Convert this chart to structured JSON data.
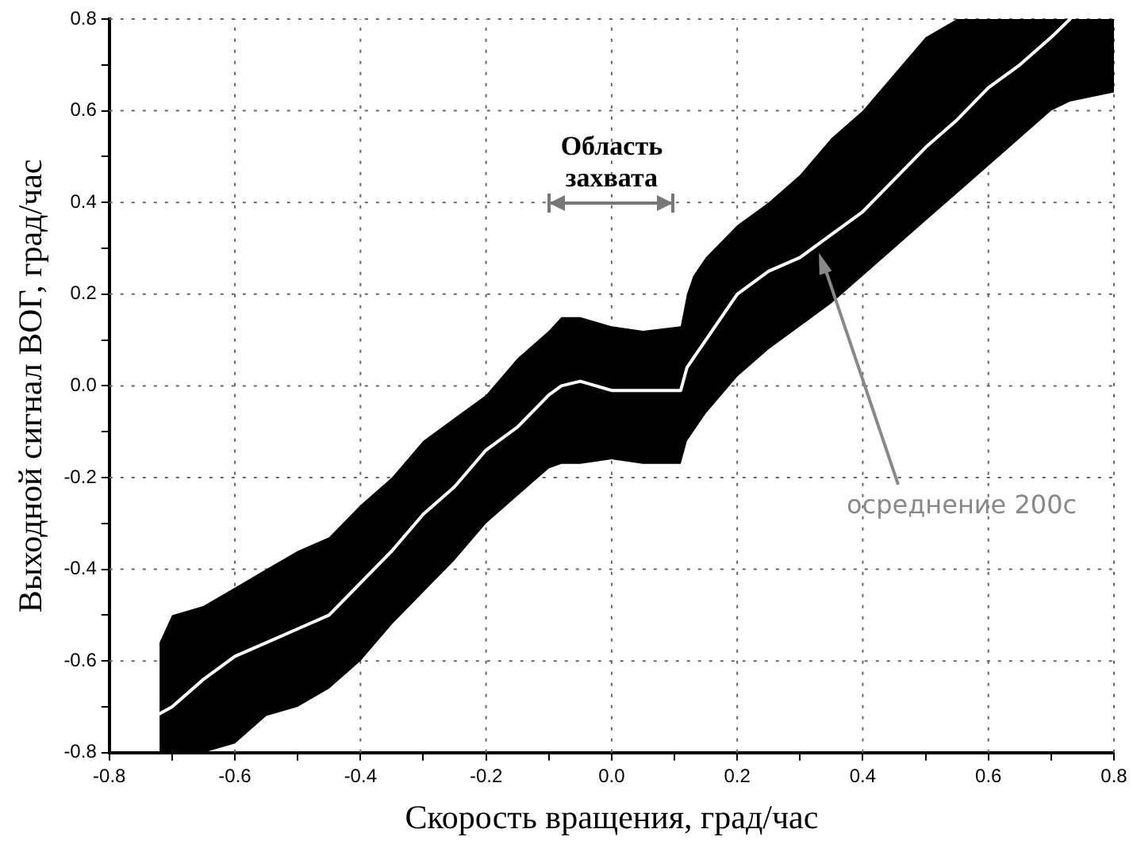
{
  "chart_data": {
    "type": "line",
    "xlabel": "Скорость вращения, град/час",
    "ylabel": "Выходной сигнал ВОГ, град/час",
    "xlim": [
      -0.8,
      0.8
    ],
    "ylim": [
      -0.8,
      0.8
    ],
    "xticks": [
      -0.8,
      {
        "value": -0.7,
        "label": null
      },
      -0.6,
      {
        "value": -0.5,
        "label": null
      },
      -0.4,
      {
        "value": -0.3,
        "label": null
      },
      -0.2,
      {
        "value": -0.1,
        "label": null
      },
      {
        "value": 0,
        "label": "0.0"
      },
      {
        "value": 0.1,
        "label": null
      },
      0.2,
      {
        "value": 0.3,
        "label": null
      },
      0.4,
      {
        "value": 0.5,
        "label": null
      },
      0.6,
      {
        "value": 0.7,
        "label": null
      },
      0.8
    ],
    "yticks": [
      -0.8,
      {
        "value": -0.7,
        "label": null
      },
      -0.6,
      {
        "value": -0.5,
        "label": null
      },
      -0.4,
      {
        "value": -0.3,
        "label": null
      },
      -0.2,
      {
        "value": -0.1,
        "label": null
      },
      {
        "value": 0,
        "label": "0.0"
      },
      {
        "value": 0.1,
        "label": null
      },
      0.2,
      {
        "value": 0.3,
        "label": null
      },
      0.4,
      {
        "value": 0.5,
        "label": null
      },
      0.6,
      {
        "value": 0.7,
        "label": null
      },
      0.8
    ],
    "grid": true,
    "legend": false,
    "marker": "none",
    "line_style": "solid",
    "series": [
      {
        "color": "#ffffff",
        "x": [
          -0.72,
          -0.7,
          -0.65,
          -0.6,
          -0.55,
          -0.5,
          -0.45,
          -0.4,
          -0.35,
          -0.3,
          -0.25,
          -0.2,
          -0.15,
          -0.1,
          -0.08,
          -0.05,
          0,
          0.05,
          0.11,
          0.12,
          0.13,
          0.15,
          0.2,
          0.25,
          0.3,
          0.35,
          0.4,
          0.45,
          0.5,
          0.55,
          0.6,
          0.65,
          0.7,
          0.73,
          0.8
        ],
        "values": [
          -0.715,
          -0.7,
          -0.64,
          -0.59,
          -0.56,
          -0.53,
          -0.5,
          -0.43,
          -0.36,
          -0.28,
          -0.22,
          -0.14,
          -0.09,
          -0.02,
          0,
          0.01,
          -0.01,
          -0.01,
          -0.01,
          0.04,
          0.06,
          0.1,
          0.2,
          0.25,
          0.28,
          0.33,
          0.38,
          0.45,
          0.52,
          0.58,
          0.65,
          0.7,
          0.76,
          0.8,
          null
        ],
        "upper": [
          -0.56,
          -0.5,
          -0.48,
          -0.44,
          -0.4,
          -0.36,
          -0.33,
          -0.26,
          -0.2,
          -0.12,
          -0.07,
          -0.02,
          0.06,
          0.12,
          0.15,
          0.15,
          0.13,
          0.12,
          0.13,
          0.2,
          0.24,
          0.28,
          0.35,
          0.4,
          0.46,
          0.54,
          0.6,
          0.68,
          0.76,
          0.8,
          0.8,
          0.8,
          0.8,
          0.8,
          0.8
        ],
        "lower": [
          -0.8,
          -0.8,
          -0.8,
          -0.78,
          -0.72,
          -0.7,
          -0.66,
          -0.6,
          -0.52,
          -0.45,
          -0.38,
          -0.3,
          -0.24,
          -0.18,
          -0.17,
          -0.17,
          -0.16,
          -0.17,
          -0.17,
          -0.12,
          -0.1,
          -0.06,
          0.02,
          0.08,
          0.13,
          0.18,
          0.24,
          0.3,
          0.36,
          0.42,
          0.48,
          0.54,
          0.6,
          0.62,
          0.64
        ]
      }
    ],
    "annotations": [
      "Область захвата",
      {
        "text": "осреднение 200с",
        "x": 0.33,
        "y": 0.29
      }
    ]
  }
}
